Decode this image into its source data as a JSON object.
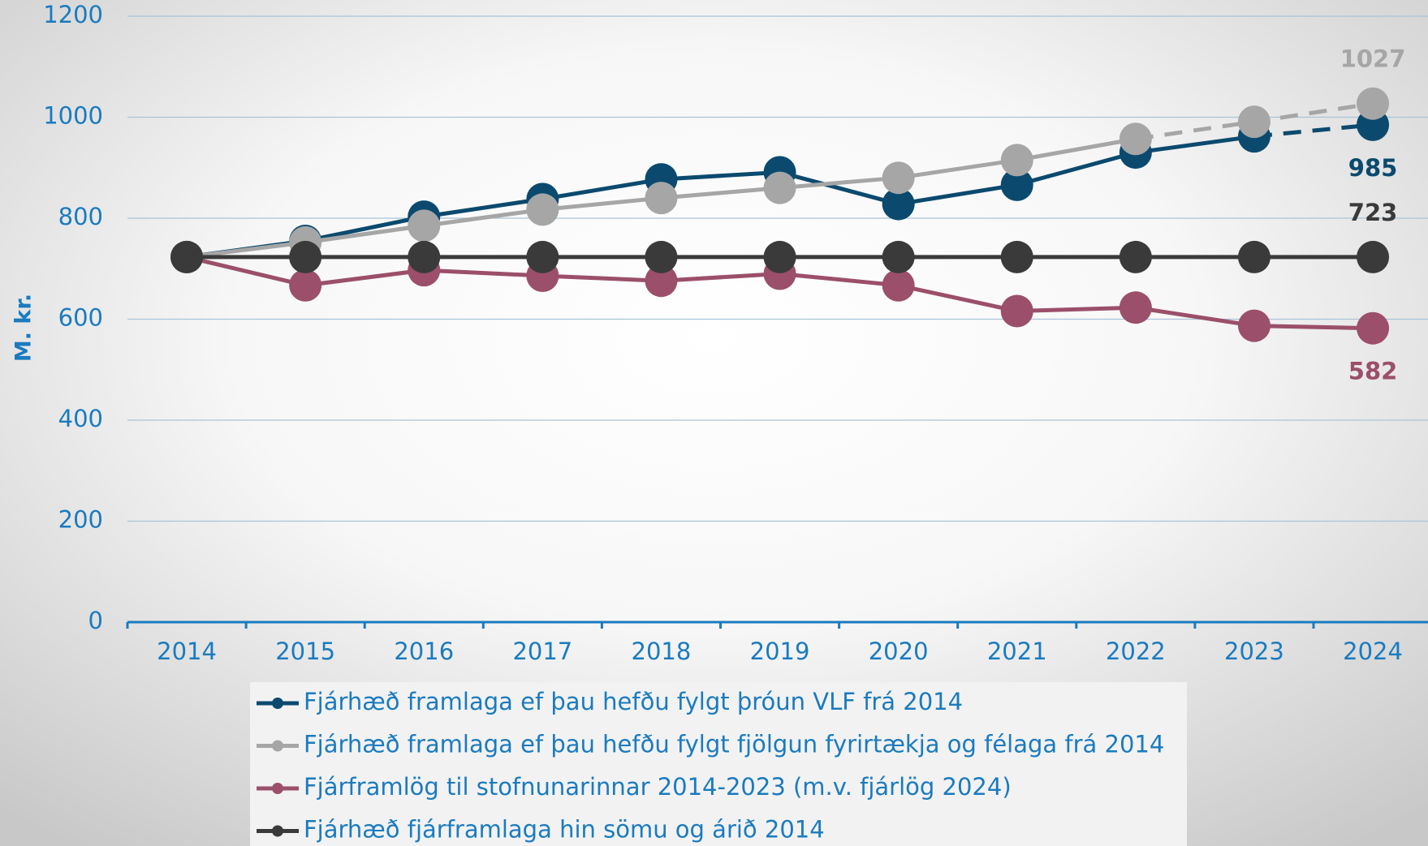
{
  "chart_data": {
    "type": "line",
    "y_label": "M. kr.",
    "categories": [
      "2014",
      "2015",
      "2016",
      "2017",
      "2018",
      "2019",
      "2020",
      "2021",
      "2022",
      "2023",
      "2024"
    ],
    "ylim": [
      0,
      1200
    ],
    "yticks": [
      0,
      200,
      400,
      600,
      800,
      1000,
      1200
    ],
    "grid": true,
    "legend": "bottom",
    "series": [
      {
        "name": "Fjárhæð framlaga ef þau hefðu fylgt þróun VLF frá 2014",
        "color": "#0b4a6e",
        "values": [
          723,
          755,
          803,
          838,
          877,
          891,
          828,
          866,
          930,
          962,
          985
        ],
        "dashed_categories": [
          "2024"
        ],
        "end_label": "below"
      },
      {
        "name": "Fjárhæð framlaga ef þau hefðu fylgt fjölgun fyrirtækja og félaga frá 2014",
        "color": "#a6a6a6",
        "values": [
          723,
          752,
          785,
          817,
          840,
          860,
          880,
          915,
          957,
          991,
          1027
        ],
        "dashed_categories": [
          "2023",
          "2024"
        ],
        "end_label": "above"
      },
      {
        "name": "Fjárframlög til stofnunarinnar 2014-2023 (m.v. fjárlög 2024)",
        "color": "#9b4f6a",
        "values": [
          723,
          667,
          697,
          686,
          676,
          690,
          667,
          616,
          623,
          587,
          582
        ],
        "dashed_categories": [],
        "end_label": "below"
      },
      {
        "name": "Fjárhæð fjárframlaga hin sömu og árið 2014",
        "color": "#3a3a3a",
        "values": [
          723,
          723,
          723,
          723,
          723,
          723,
          723,
          723,
          723,
          723,
          723
        ],
        "dashed_categories": [],
        "end_label": "above"
      }
    ]
  }
}
